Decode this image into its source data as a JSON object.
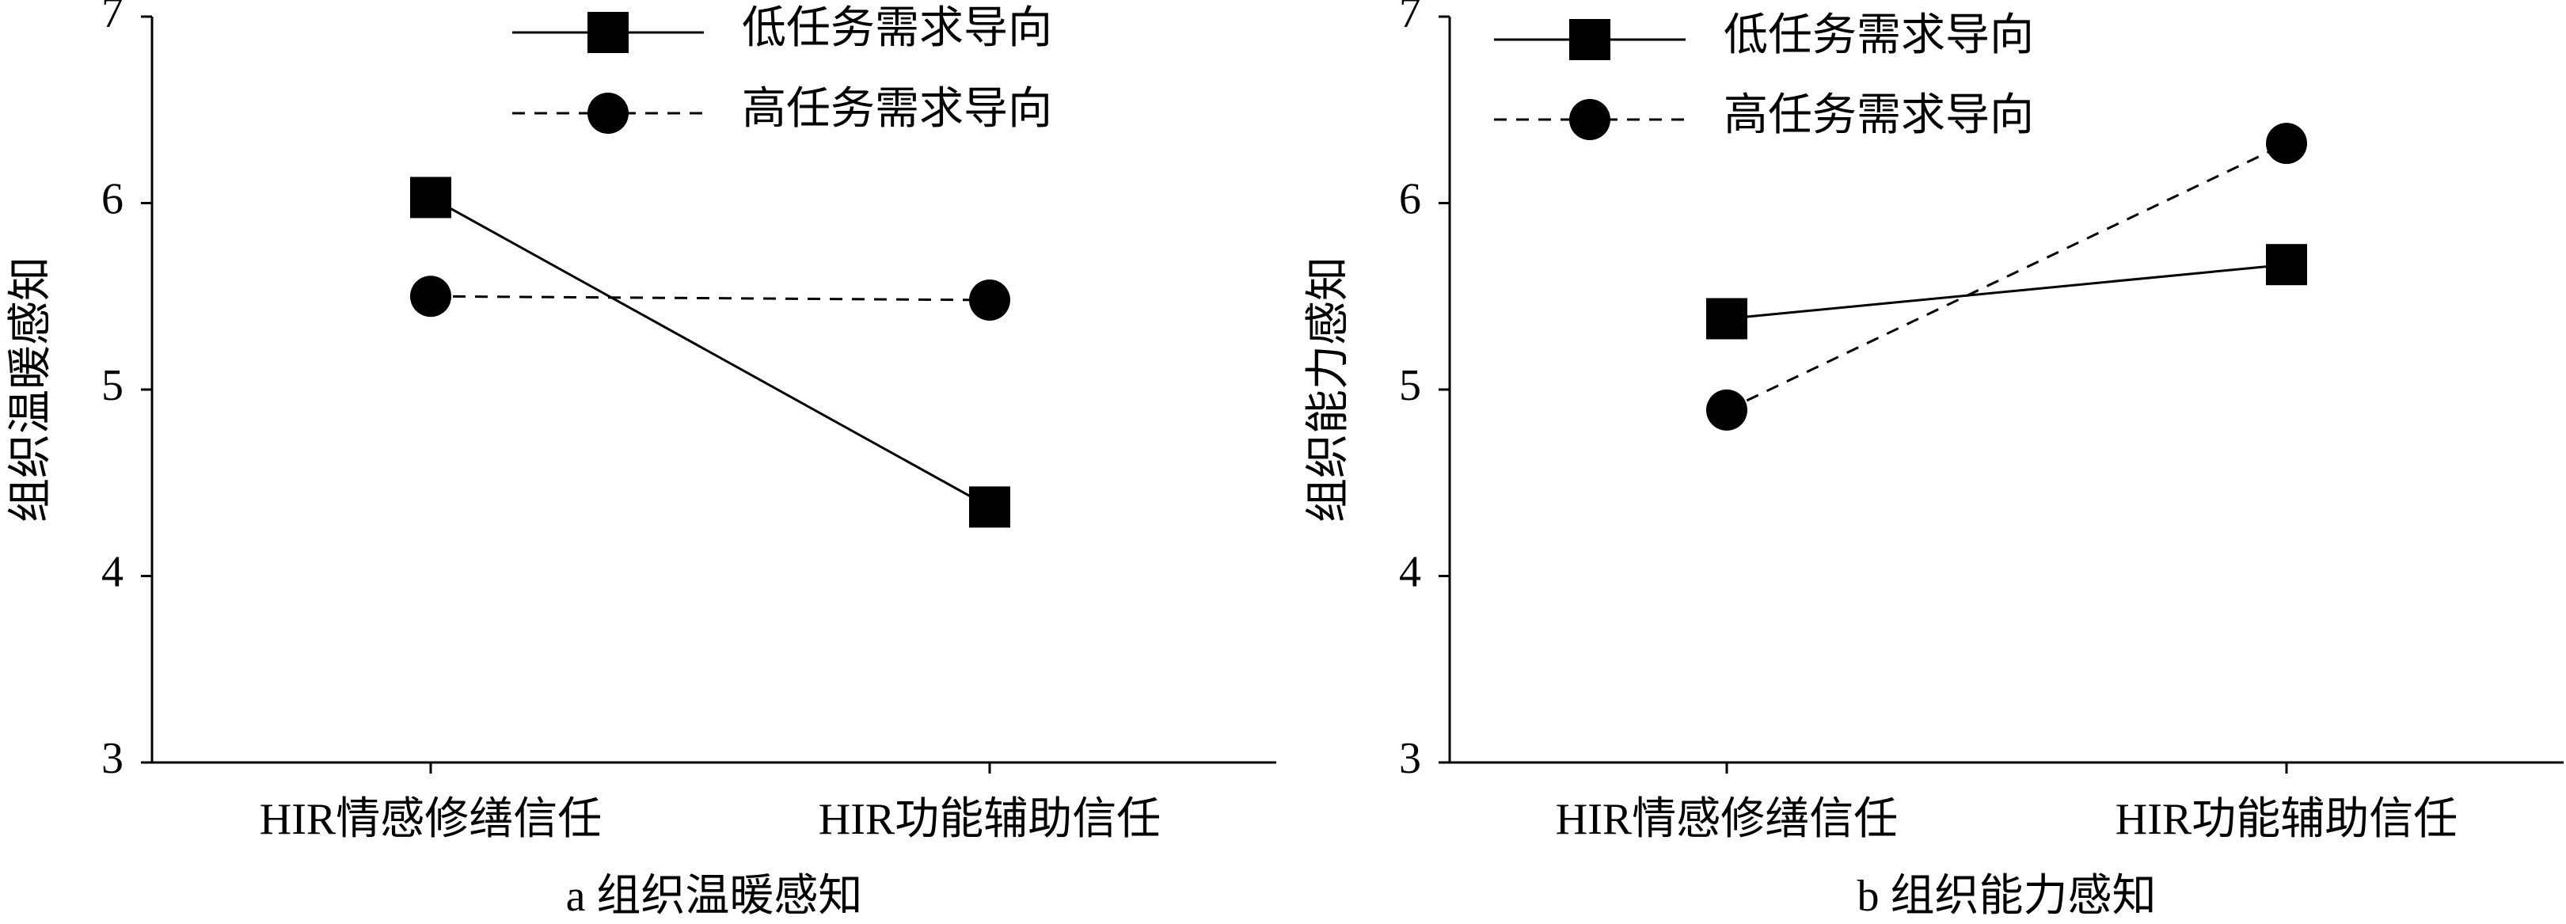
{
  "chart_data": [
    {
      "type": "line",
      "caption": "a  组织温暖感知",
      "y_label": "组织温暖感知",
      "categories": [
        "HIR情感修缮信任",
        "HIR功能辅助信任"
      ],
      "series": [
        {
          "name": "低任务需求导向",
          "color": "#000000",
          "linestyle": "solid",
          "marker": "square",
          "values": [
            6.03,
            4.37
          ]
        },
        {
          "name": "高任务需求导向",
          "color": "#000000",
          "linestyle": "dashed",
          "marker": "circle",
          "values": [
            5.5,
            5.48
          ]
        }
      ],
      "ylim": [
        3,
        7
      ],
      "yticks": [
        3,
        4,
        5,
        6,
        7
      ],
      "legend": "top"
    },
    {
      "type": "line",
      "caption": "b  组织能力感知",
      "y_label": "组织能力感知",
      "categories": [
        "HIR情感修缮信任",
        "HIR功能辅助信任"
      ],
      "series": [
        {
          "name": "低任务需求导向",
          "color": "#000000",
          "linestyle": "solid",
          "marker": "square",
          "values": [
            5.38,
            5.67
          ]
        },
        {
          "name": "高任务需求导向",
          "color": "#000000",
          "linestyle": "dashed",
          "marker": "circle",
          "values": [
            4.89,
            6.32
          ]
        }
      ],
      "ylim": [
        3,
        7
      ],
      "yticks": [
        3,
        4,
        5,
        6,
        7
      ],
      "legend": "top"
    }
  ]
}
